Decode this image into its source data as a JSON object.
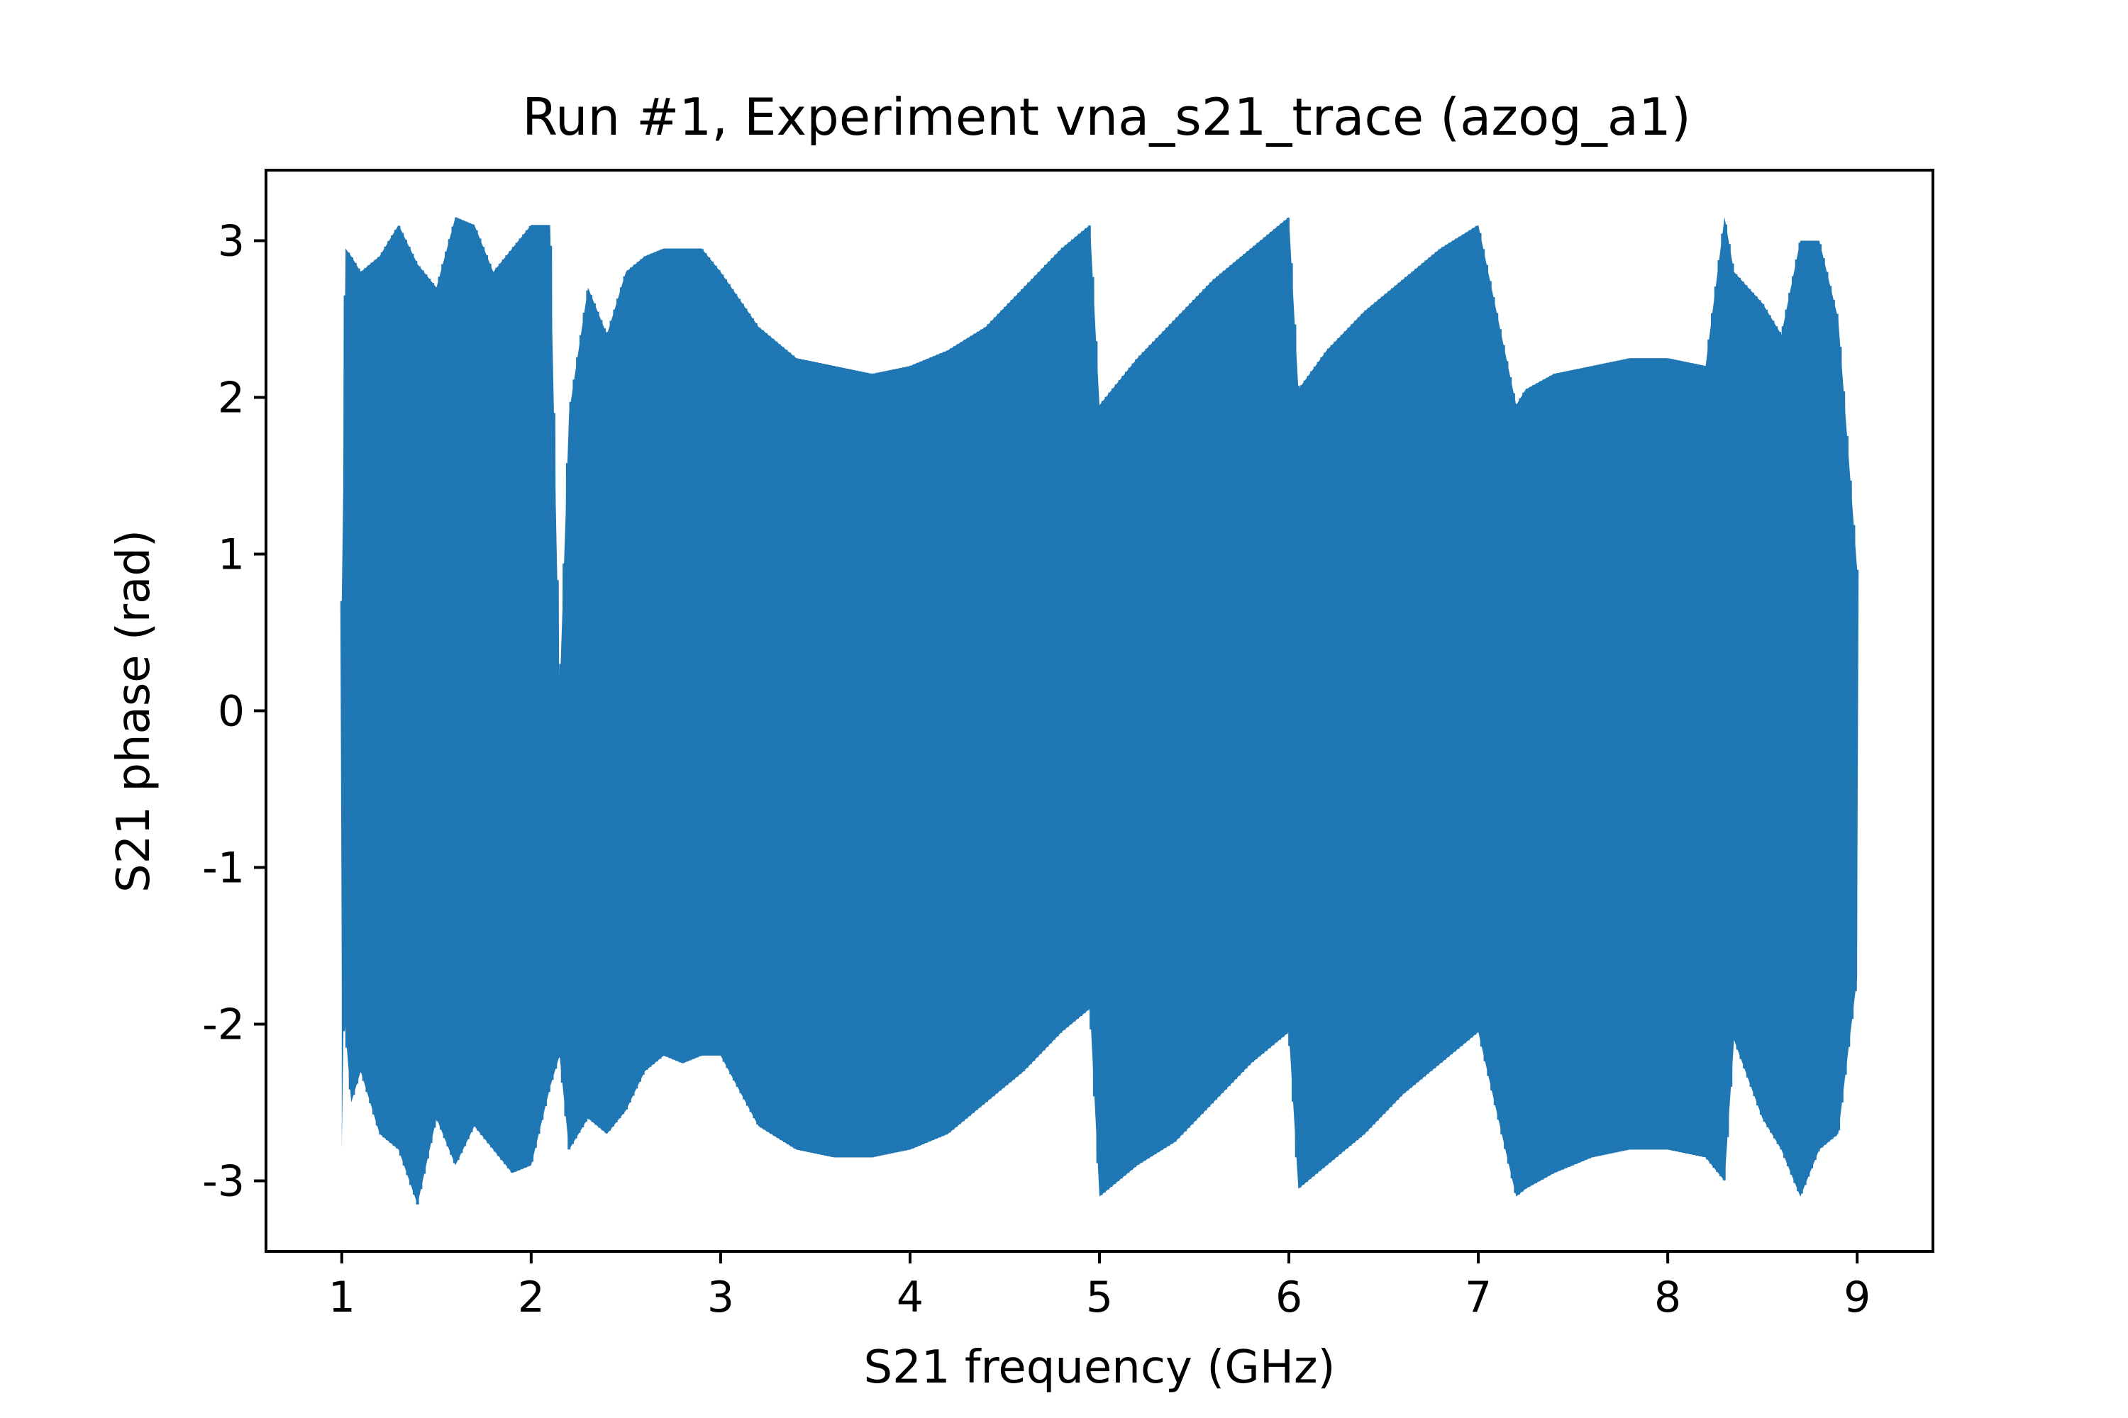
{
  "chart_data": {
    "type": "line",
    "title": "Run #1, Experiment vna_s21_trace (azog_a1)",
    "xlabel": "S21 frequency (GHz)",
    "ylabel": "S21 phase (rad)",
    "xlim": [
      0.6,
      9.4
    ],
    "ylim": [
      -3.45,
      3.45
    ],
    "x_ticks": [
      1,
      2,
      3,
      4,
      5,
      6,
      7,
      8,
      9
    ],
    "x_tick_labels": [
      "1",
      "2",
      "3",
      "4",
      "5",
      "6",
      "7",
      "8",
      "9"
    ],
    "y_ticks": [
      3,
      2,
      1,
      0,
      -1,
      -2,
      -3
    ],
    "y_tick_labels": [
      "3",
      "2",
      "1",
      "0",
      "-1",
      "-2",
      "-3"
    ],
    "grid": false,
    "series": [
      {
        "color": "#1f77b4",
        "x_range": [
          1.0,
          9.0
        ],
        "description_points": {
          "x": [
            1.0,
            1.01,
            1.02,
            1.05,
            1.1,
            1.2,
            1.3,
            1.4,
            1.5,
            1.6,
            1.7,
            1.8,
            1.9,
            2.0,
            2.1,
            2.15,
            2.2,
            2.3,
            2.4,
            2.5,
            2.6,
            2.7,
            2.8,
            2.9,
            3.0,
            3.2,
            3.4,
            3.6,
            3.8,
            4.0,
            4.2,
            4.4,
            4.6,
            4.8,
            4.95,
            5.0,
            5.2,
            5.4,
            5.6,
            5.8,
            6.0,
            6.05,
            6.2,
            6.4,
            6.6,
            6.8,
            7.0,
            7.2,
            7.25,
            7.4,
            7.6,
            7.8,
            8.0,
            8.2,
            8.3,
            8.35,
            8.5,
            8.6,
            8.7,
            8.8,
            8.9,
            9.0
          ],
          "upper": [
            0.7,
            1.6,
            2.95,
            2.9,
            2.8,
            2.9,
            3.1,
            2.85,
            2.7,
            3.15,
            3.1,
            2.8,
            2.95,
            3.1,
            3.1,
            0.1,
            1.9,
            2.7,
            2.4,
            2.8,
            2.9,
            2.95,
            2.95,
            2.95,
            2.8,
            2.45,
            2.25,
            2.2,
            2.15,
            2.2,
            2.3,
            2.45,
            2.7,
            2.95,
            3.1,
            1.95,
            2.25,
            2.5,
            2.75,
            2.95,
            3.15,
            2.05,
            2.3,
            2.55,
            2.75,
            2.95,
            3.1,
            1.95,
            2.05,
            2.15,
            2.2,
            2.25,
            2.25,
            2.2,
            3.15,
            2.8,
            2.6,
            2.4,
            3.0,
            3.0,
            2.5,
            0.9
          ],
          "lower": [
            -2.8,
            -1.95,
            -2.05,
            -2.5,
            -2.3,
            -2.7,
            -2.8,
            -3.15,
            -2.6,
            -2.9,
            -2.65,
            -2.8,
            -2.95,
            -2.9,
            -2.4,
            -2.2,
            -2.8,
            -2.6,
            -2.7,
            -2.55,
            -2.3,
            -2.2,
            -2.25,
            -2.2,
            -2.2,
            -2.65,
            -2.8,
            -2.85,
            -2.85,
            -2.8,
            -2.7,
            -2.5,
            -2.3,
            -2.05,
            -1.9,
            -3.1,
            -2.9,
            -2.75,
            -2.5,
            -2.25,
            -2.05,
            -3.05,
            -2.9,
            -2.7,
            -2.45,
            -2.25,
            -2.05,
            -3.1,
            -3.05,
            -2.95,
            -2.85,
            -2.8,
            -2.8,
            -2.85,
            -3.0,
            -2.1,
            -2.6,
            -2.8,
            -3.1,
            -2.8,
            -2.7,
            -1.7
          ]
        }
      }
    ]
  }
}
